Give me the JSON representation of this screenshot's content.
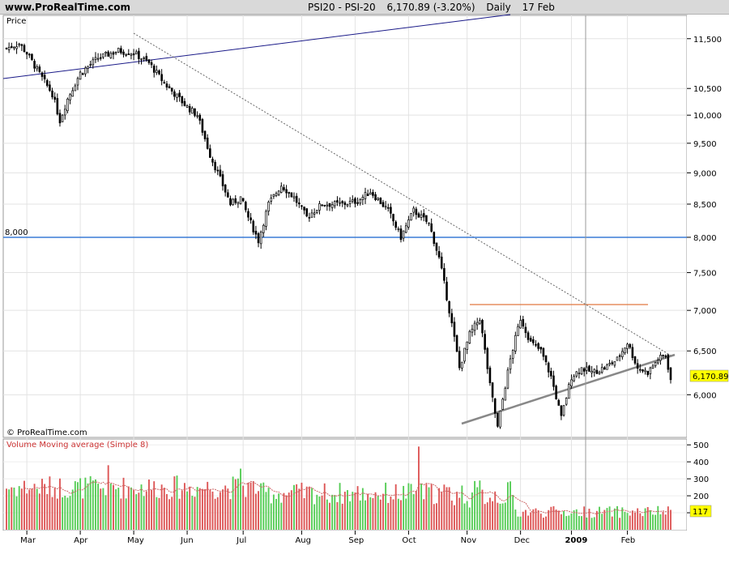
{
  "header": {
    "site": "www.ProRealTime.com",
    "symbol": "PSI20 - PSI-20",
    "last": "6,170.89 (-3.20%)",
    "period": "Daily",
    "date": "17 Feb"
  },
  "price_panel": {
    "label": "Price",
    "copyright": "© ProRealTime.com",
    "level_label": "8,000",
    "last_price_tag": "6,170.89"
  },
  "volume_panel": {
    "label": "Volume Moving average (Simple 8)",
    "last_volume_tag": "117"
  },
  "colors": {
    "up_candle": "#ffffff",
    "down_candle": "#000000",
    "volume_up": "#55cc55",
    "volume_down": "#dd5555",
    "level_line": "#3a7bd5",
    "resistance_line": "#e07840",
    "trend_line_upper": "#1a1a88",
    "support_line": "#888888",
    "price_tag_bg": "#ffff00"
  },
  "chart_data": [
    {
      "type": "candlestick",
      "title": "",
      "xlabel": "",
      "ylabel": "Price",
      "x_tick_labels": [
        "Mar",
        "Apr",
        "May",
        "Jun",
        "Jul",
        "Aug",
        "Sep",
        "Oct",
        "Nov",
        "Dec",
        "2009",
        "Feb"
      ],
      "y_tick_labels": [
        "6,000",
        "6,500",
        "7,000",
        "7,500",
        "8,000",
        "8,500",
        "9,000",
        "9,500",
        "10,000",
        "10,500",
        "11,500"
      ],
      "ylim": [
        5550,
        12000
      ],
      "log_scale": true,
      "grid": true,
      "horizontal_level": 8000,
      "resistance_level": 7050,
      "last_close": 6170.89,
      "change_pct": -3.2,
      "monthly_closes": [
        {
          "month": "Mar",
          "close": 10700
        },
        {
          "month": "Apr",
          "close": 11100
        },
        {
          "month": "May",
          "close": 11050
        },
        {
          "month": "Jun",
          "close": 10100
        },
        {
          "month": "Jul",
          "close": 8600
        },
        {
          "month": "Aug",
          "close": 8500
        },
        {
          "month": "Sep",
          "close": 8200
        },
        {
          "month": "Oct",
          "close": 6050
        },
        {
          "month": "Nov",
          "close": 6600
        },
        {
          "month": "Dec",
          "close": 6300
        },
        {
          "month": "Jan",
          "close": 6400
        },
        {
          "month": "Feb",
          "close": 6170.89
        }
      ]
    },
    {
      "type": "bar",
      "title": "",
      "ylabel": "Volume Moving average (Simple 8)",
      "y_tick_labels": [
        "100",
        "200",
        "300",
        "400",
        "500"
      ],
      "ylim": [
        0,
        520
      ],
      "last_volume": 117,
      "grid": true
    }
  ]
}
